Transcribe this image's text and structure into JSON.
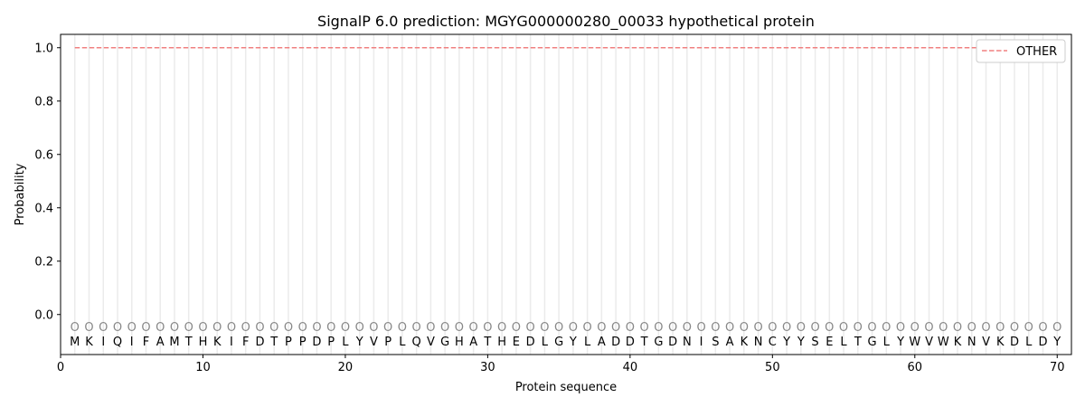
{
  "chart_data": {
    "type": "line",
    "title": "SignalP 6.0 prediction: MGYG000000280_00033 hypothetical protein",
    "xlabel": "Protein sequence",
    "ylabel": "Probability",
    "xlim": [
      0,
      71
    ],
    "ylim": [
      -0.15,
      1.05
    ],
    "xticks": [
      0,
      10,
      20,
      30,
      40,
      50,
      60,
      70
    ],
    "yticks": [
      "0.0",
      "0.2",
      "0.4",
      "0.6",
      "0.8",
      "1.0"
    ],
    "sequence": [
      "M",
      "K",
      "I",
      "Q",
      "I",
      "F",
      "A",
      "M",
      "T",
      "H",
      "K",
      "I",
      "F",
      "D",
      "T",
      "P",
      "P",
      "D",
      "P",
      "L",
      "Y",
      "V",
      "P",
      "L",
      "Q",
      "V",
      "G",
      "H",
      "A",
      "T",
      "H",
      "E",
      "D",
      "L",
      "G",
      "Y",
      "L",
      "A",
      "D",
      "D",
      "T",
      "G",
      "D",
      "N",
      "I",
      "S",
      "A",
      "K",
      "N",
      "C",
      "Y",
      "Y",
      "S",
      "E",
      "L",
      "T",
      "G",
      "L",
      "Y",
      "W",
      "V",
      "W",
      "K",
      "N",
      "V",
      "K",
      "D",
      "L",
      "D",
      "Y"
    ],
    "predicted_labels": "OOOOOOOOOOOOOOOOOOOOOOOOOOOOOOOOOOOOOOOOOOOOOOOOOOOOOOOOOOOOOOOOOOOOOO",
    "series": [
      {
        "name": "OTHER",
        "color": "#f08080",
        "style": "dashed",
        "x_range": [
          1,
          70
        ],
        "value": 1.0
      }
    ],
    "legend": "top-right",
    "grid": "vertical per residue"
  }
}
